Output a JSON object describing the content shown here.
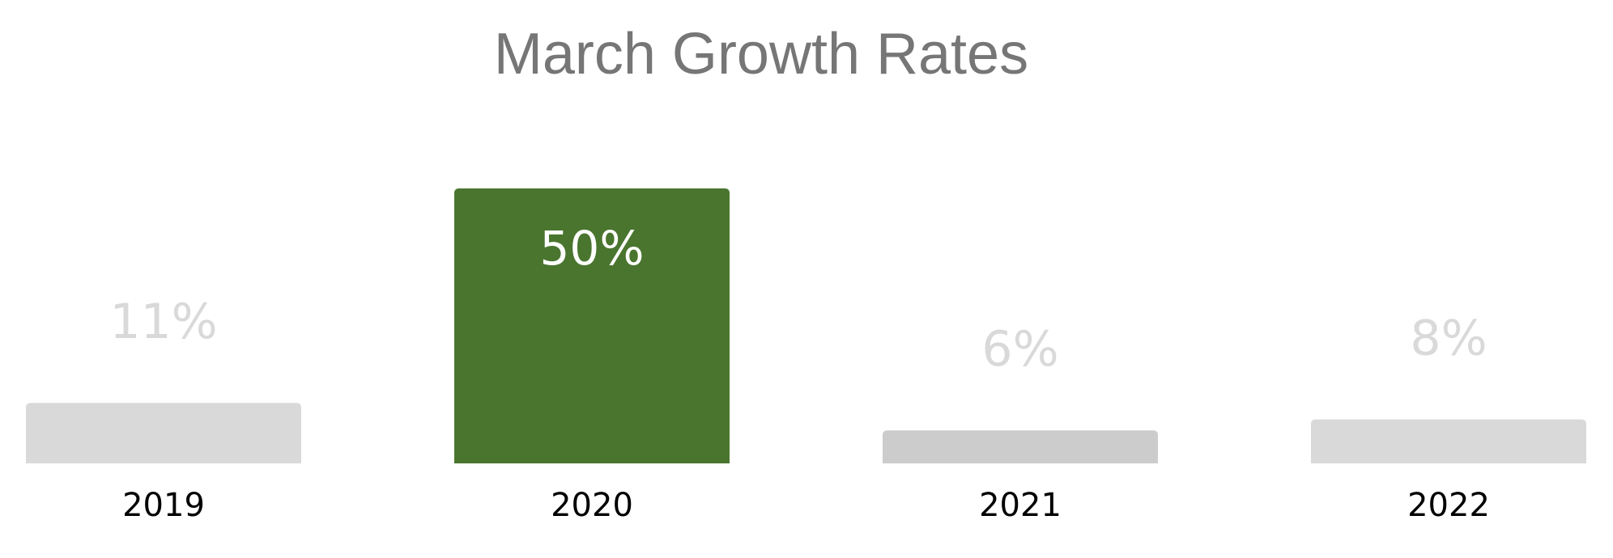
{
  "chart_data": {
    "type": "bar",
    "title": "March Growth Rates",
    "xlabel": "",
    "ylabel": "",
    "categories": [
      "2019",
      "2020",
      "2021",
      "2022"
    ],
    "values": [
      11,
      50,
      6,
      8
    ],
    "data_labels": [
      "11%",
      "50%",
      "6%",
      "8%"
    ],
    "ylim": [
      0,
      50
    ],
    "grid": false,
    "legend": "none",
    "colors": {
      "highlight": "#4a752e",
      "bar": "#d9d9d9",
      "bar_alt": "#cccccc",
      "label_faded": "#d9d9d9",
      "label_highlight": "#ffffff",
      "title": "#767676"
    },
    "highlighted_index": 1,
    "bar_colors": [
      "#d9d9d9",
      "#4a752e",
      "#cccccc",
      "#d9d9d9"
    ]
  }
}
